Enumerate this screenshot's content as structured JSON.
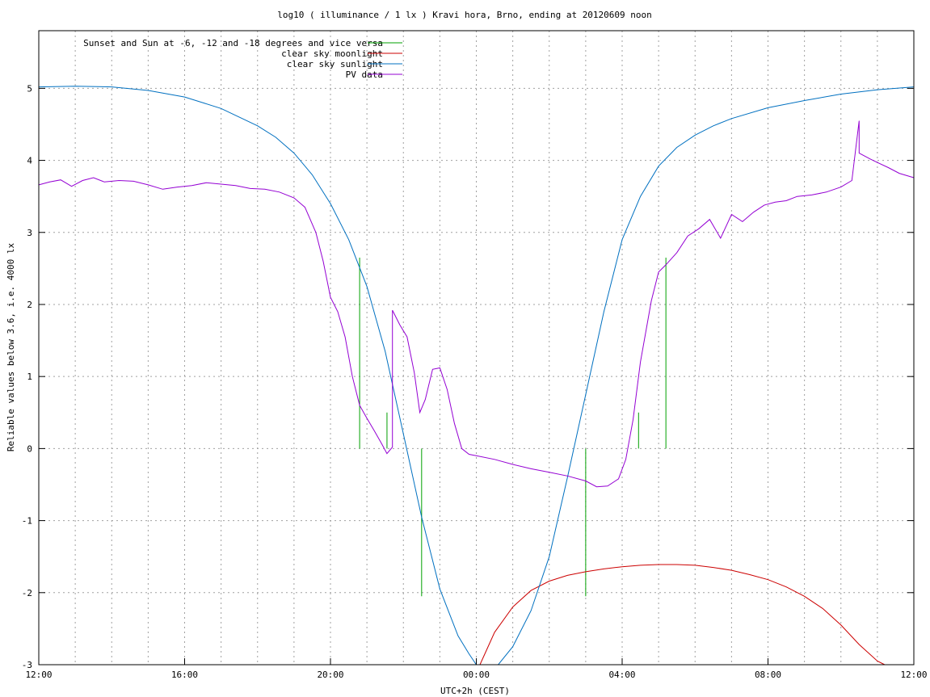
{
  "chart_data": {
    "type": "line",
    "title": "log10 ( illuminance / 1 lx ) Kravi hora, Brno, ending at 20120609 noon",
    "xlabel": "UTC+2h (CEST)",
    "ylabel": "Reliable values below 3.6, i.e. 4000 lx",
    "xlim": [
      0,
      24
    ],
    "ylim": [
      -3,
      5.8
    ],
    "x_unit": "hours since 12:00 (UTC+2h)",
    "x_ticks": [
      {
        "value": 0,
        "label": "12:00"
      },
      {
        "value": 4,
        "label": "16:00"
      },
      {
        "value": 8,
        "label": "20:00"
      },
      {
        "value": 12,
        "label": "00:00"
      },
      {
        "value": 16,
        "label": "04:00"
      },
      {
        "value": 20,
        "label": "08:00"
      },
      {
        "value": 24,
        "label": "12:00"
      }
    ],
    "y_ticks": [
      -3,
      -2,
      -1,
      0,
      1,
      2,
      3,
      4,
      5
    ],
    "grid": true,
    "legend_position": "top-left",
    "series": [
      {
        "name": "Sunset and Sun at -6, -12 and -18 degrees and vice versa",
        "color": "#00a000",
        "style": "impulses",
        "points": [
          [
            8.8,
            2.65
          ],
          [
            9.55,
            0.5
          ],
          [
            10.5,
            -2.05
          ],
          [
            14.95,
            0.0
          ],
          [
            15.0,
            -2.05
          ],
          [
            16.45,
            0.5
          ],
          [
            17.2,
            2.65
          ]
        ]
      },
      {
        "name": "clear sky moonlight",
        "color": "#cc0000",
        "x": [
          12.1,
          12.5,
          13.0,
          13.5,
          14.0,
          14.5,
          15.0,
          15.5,
          16.0,
          16.5,
          17.0,
          17.5,
          18.0,
          18.5,
          19.0,
          19.5,
          20.0,
          20.5,
          21.0,
          21.5,
          22.0,
          22.5,
          23.0,
          23.2
        ],
        "y": [
          -3.0,
          -2.55,
          -2.2,
          -1.97,
          -1.84,
          -1.76,
          -1.71,
          -1.67,
          -1.64,
          -1.62,
          -1.61,
          -1.61,
          -1.62,
          -1.65,
          -1.69,
          -1.75,
          -1.82,
          -1.92,
          -2.05,
          -2.22,
          -2.45,
          -2.72,
          -2.95,
          -3.0
        ]
      },
      {
        "name": "clear sky sunlight",
        "color": "#0070c0",
        "x": [
          0.0,
          1.0,
          2.0,
          3.0,
          4.0,
          5.0,
          6.0,
          6.5,
          7.0,
          7.5,
          8.0,
          8.5,
          9.0,
          9.5,
          10.0,
          10.5,
          11.0,
          11.5,
          11.8,
          12.0,
          12.6,
          13.0,
          13.5,
          14.0,
          14.5,
          15.0,
          15.5,
          16.0,
          16.5,
          17.0,
          17.5,
          18.0,
          18.5,
          19.0,
          20.0,
          21.0,
          22.0,
          23.0,
          24.0
        ],
        "y": [
          5.02,
          5.03,
          5.02,
          4.97,
          4.88,
          4.72,
          4.48,
          4.32,
          4.1,
          3.8,
          3.4,
          2.9,
          2.25,
          1.35,
          0.2,
          -0.95,
          -1.95,
          -2.6,
          -2.85,
          -3.0,
          -3.0,
          -2.75,
          -2.25,
          -1.5,
          -0.4,
          0.75,
          1.9,
          2.9,
          3.5,
          3.92,
          4.18,
          4.35,
          4.48,
          4.58,
          4.73,
          4.83,
          4.92,
          4.98,
          5.02
        ]
      },
      {
        "name": "PV data",
        "color": "#9400d3",
        "x": [
          0.0,
          0.3,
          0.6,
          0.9,
          1.2,
          1.5,
          1.8,
          2.2,
          2.6,
          3.0,
          3.4,
          3.8,
          4.2,
          4.6,
          5.0,
          5.4,
          5.8,
          6.2,
          6.6,
          7.0,
          7.3,
          7.6,
          7.8,
          8.0,
          8.2,
          8.4,
          8.6,
          8.8,
          9.0,
          9.2,
          9.4,
          9.55,
          9.7,
          9.7,
          9.9,
          10.1,
          10.3,
          10.45,
          10.6,
          10.8,
          11.0,
          11.2,
          11.4,
          11.6,
          11.8,
          12.0,
          12.5,
          13.0,
          13.5,
          14.0,
          14.5,
          15.0,
          15.3,
          15.6,
          15.9,
          16.1,
          16.3,
          16.5,
          16.8,
          17.0,
          17.2,
          17.5,
          17.8,
          18.1,
          18.4,
          18.7,
          19.0,
          19.3,
          19.6,
          19.9,
          20.2,
          20.5,
          20.8,
          21.2,
          21.6,
          22.0,
          22.3,
          22.5,
          22.5,
          22.8,
          23.0,
          23.3,
          23.6,
          24.0
        ],
        "y": [
          3.66,
          3.7,
          3.73,
          3.64,
          3.72,
          3.76,
          3.7,
          3.72,
          3.71,
          3.66,
          3.6,
          3.63,
          3.65,
          3.69,
          3.67,
          3.65,
          3.61,
          3.6,
          3.56,
          3.48,
          3.35,
          3.0,
          2.6,
          2.1,
          1.9,
          1.55,
          1.0,
          0.6,
          0.42,
          0.25,
          0.07,
          -0.07,
          0.02,
          1.92,
          1.72,
          1.55,
          1.05,
          0.5,
          0.68,
          1.1,
          1.12,
          0.82,
          0.35,
          0.0,
          -0.08,
          -0.1,
          -0.15,
          -0.22,
          -0.28,
          -0.33,
          -0.38,
          -0.45,
          -0.53,
          -0.52,
          -0.42,
          -0.15,
          0.4,
          1.2,
          2.05,
          2.45,
          2.55,
          2.72,
          2.95,
          3.05,
          3.18,
          2.92,
          3.25,
          3.15,
          3.28,
          3.38,
          3.42,
          3.44,
          3.5,
          3.52,
          3.56,
          3.63,
          3.72,
          4.55,
          4.1,
          4.02,
          3.97,
          3.9,
          3.82,
          3.76
        ]
      }
    ]
  }
}
